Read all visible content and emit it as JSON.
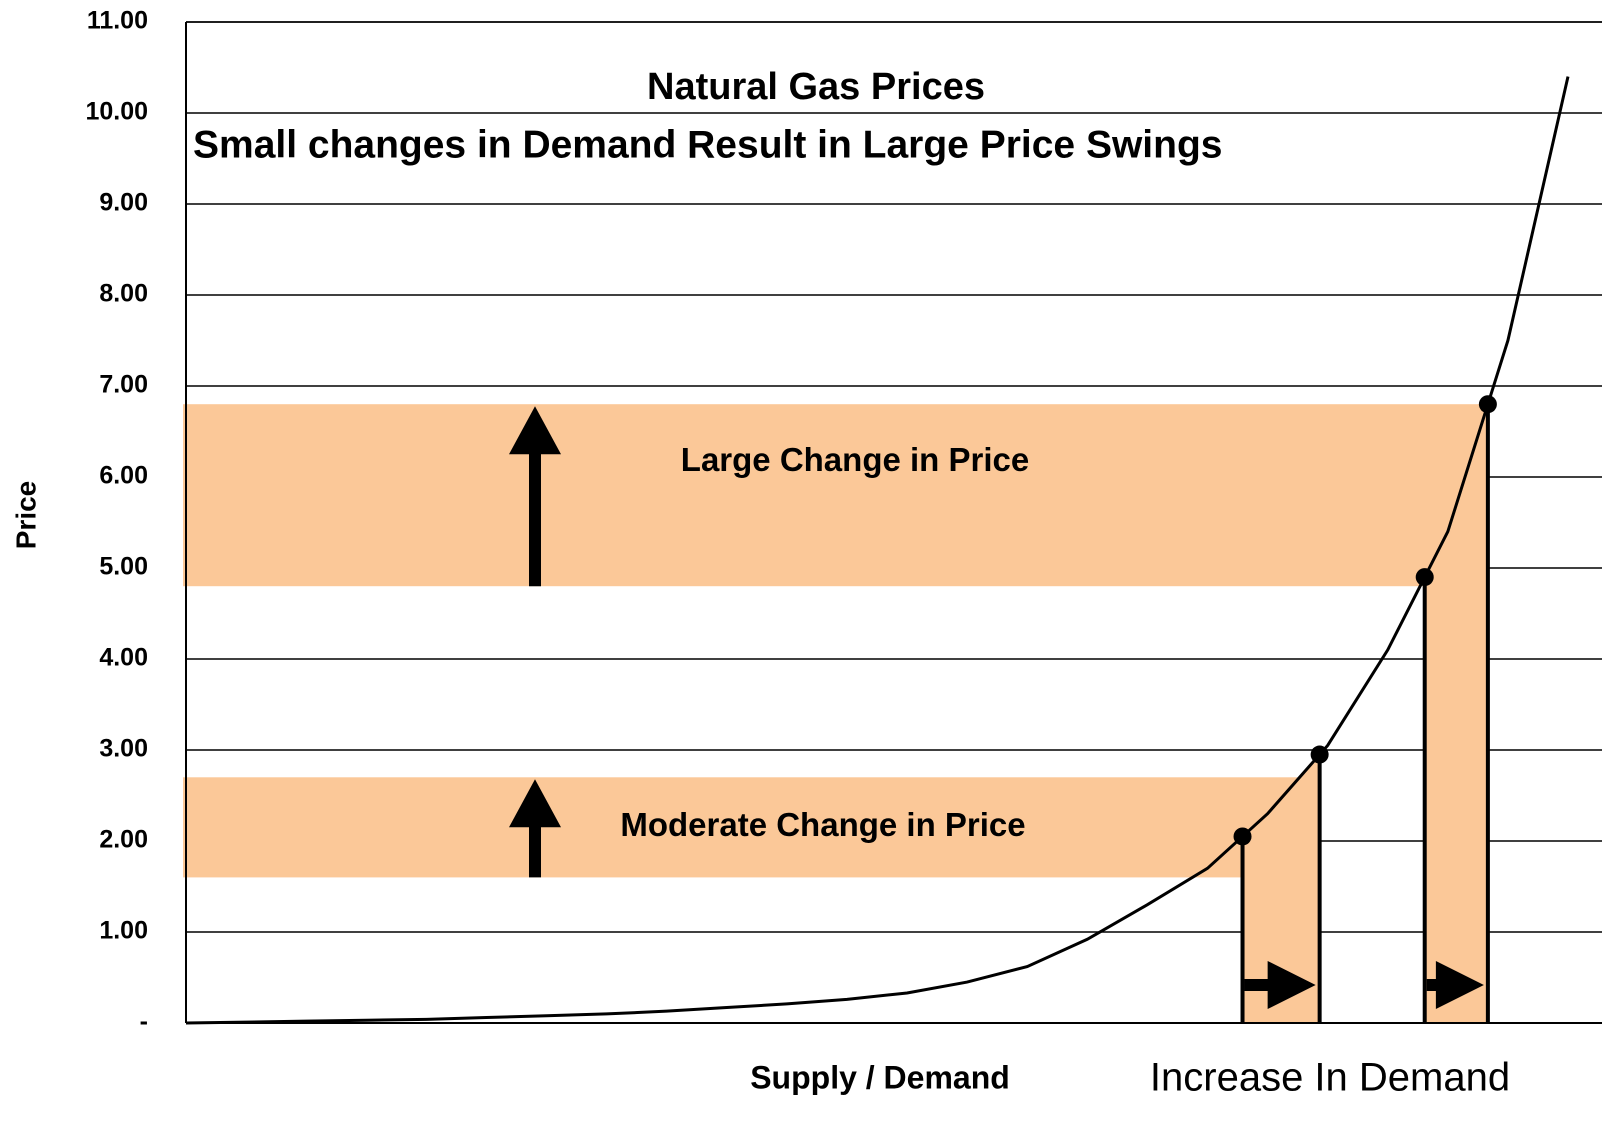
{
  "chart_data": {
    "type": "line",
    "title": "Natural Gas Prices",
    "subtitle": "Small changes in Demand Result in Large Price Swings",
    "ylabel": "Price",
    "xlabel": "Supply / Demand",
    "xlabel_note": "Increase In Demand",
    "categories": [
      null,
      null,
      null,
      null,
      null,
      null,
      null,
      null,
      null,
      null,
      null,
      null,
      null,
      null,
      null,
      null,
      null,
      null,
      null,
      null,
      null,
      null,
      null,
      null
    ],
    "series": [
      {
        "name": "Price",
        "color": "#000000",
        "values": [
          0,
          0.01,
          0.02,
          0.03,
          0.04,
          0.06,
          0.08,
          0.1,
          0.13,
          0.17,
          0.21,
          0.26,
          0.33,
          0.45,
          0.62,
          0.92,
          1.3,
          1.7,
          2.3,
          3.05,
          4.1,
          5.4,
          7.5,
          10.4
        ]
      }
    ],
    "ylim": [
      0,
      11
    ],
    "yticks": [
      {
        "value": 0,
        "label": "-"
      },
      {
        "value": 1,
        "label": "1.00"
      },
      {
        "value": 2,
        "label": "2.00"
      },
      {
        "value": 3,
        "label": "3.00"
      },
      {
        "value": 4,
        "label": "4.00"
      },
      {
        "value": 5,
        "label": "5.00"
      },
      {
        "value": 6,
        "label": "6.00"
      },
      {
        "value": 7,
        "label": "7.00"
      },
      {
        "value": 8,
        "label": "8.00"
      },
      {
        "value": 9,
        "label": "9.00"
      },
      {
        "value": 10,
        "label": "10.00"
      },
      {
        "value": 11,
        "label": "11.00"
      }
    ],
    "grid": true,
    "points": [
      2.05,
      2.95,
      4.9,
      6.8
    ],
    "annotations": [
      {
        "text": "Large Change in Price",
        "from": 4.8,
        "to": 6.8
      },
      {
        "text": "Moderate Change in Price",
        "from": 1.6,
        "to": 2.7
      }
    ],
    "band_color": "#fbc898"
  }
}
